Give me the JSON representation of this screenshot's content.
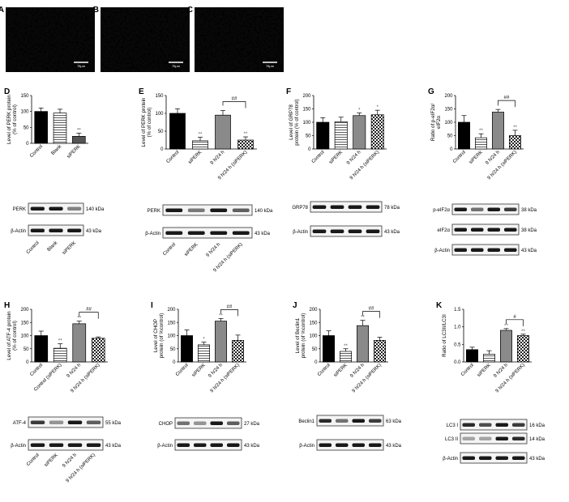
{
  "micrographs": [
    {
      "letter": "A",
      "scale": "75μm",
      "color": "#c41010"
    },
    {
      "letter": "B",
      "scale": "75μm",
      "color": "#1a24b8"
    },
    {
      "letter": "C",
      "scale": "75μm",
      "color": "#a03a6a"
    }
  ],
  "chart_data": [
    {
      "type": "bar",
      "panel": "D",
      "ylabel_lines": [
        "Level of PERK protein",
        "(% of control)"
      ],
      "ylim": [
        0,
        150
      ],
      "yticks": [
        0,
        50,
        100,
        150
      ],
      "categories": [
        "Control",
        "Blank",
        "siPERK"
      ],
      "values": [
        100,
        95,
        22
      ],
      "errors": [
        11,
        12,
        10
      ],
      "fills": [
        "black",
        "stripes",
        "dark"
      ],
      "stars": [
        "",
        "",
        "**"
      ],
      "blots": [
        {
          "label": "PERK",
          "kda": "140 kDa",
          "int": [
            1,
            1,
            0.4
          ]
        },
        {
          "label": "β-Actin",
          "kda": "43 kDa",
          "int": [
            1,
            1,
            1
          ]
        }
      ],
      "blot_labels": [
        "Control",
        "Blank",
        "siPERK"
      ]
    },
    {
      "type": "bar",
      "panel": "E",
      "ylabel_lines": [
        "Level of PERK protein",
        "(% of control)"
      ],
      "ylim": [
        0,
        150
      ],
      "yticks": [
        0,
        50,
        100,
        150
      ],
      "categories": [
        "Control",
        "siPERK",
        "9 h/24 h",
        "9 h/24 h (siPERK)"
      ],
      "values": [
        100,
        23,
        95,
        25
      ],
      "errors": [
        13,
        10,
        13,
        9
      ],
      "fills": [
        "black",
        "stripes",
        "gray",
        "check"
      ],
      "stars": [
        "",
        "**",
        "",
        "**"
      ],
      "bracket": {
        "from": 2,
        "to": 3,
        "label": "##"
      },
      "blots": [
        {
          "label": "PERK",
          "kda": "140 kDa",
          "int": [
            1,
            0.45,
            1,
            0.6
          ]
        },
        {
          "label": "β-Actin",
          "kda": "43 kDa",
          "int": [
            1,
            1,
            1,
            1
          ]
        }
      ],
      "blot_labels": [
        "Control",
        "siPERK",
        "9 h/24 h",
        "9 h/24 h (siPERK)"
      ]
    },
    {
      "type": "bar",
      "panel": "F",
      "ylabel_lines": [
        "Level of GRP78",
        "protein (% of control)"
      ],
      "ylim": [
        0,
        200
      ],
      "yticks": [
        0,
        50,
        100,
        150,
        200
      ],
      "categories": [
        "Control",
        "siPERK",
        "9 h/24 h",
        "9 h/24 h (siPERK)"
      ],
      "values": [
        100,
        102,
        125,
        128
      ],
      "errors": [
        17,
        17,
        10,
        17
      ],
      "fills": [
        "black",
        "stripes",
        "gray",
        "check"
      ],
      "stars": [
        "",
        "",
        "*",
        "*"
      ],
      "blots": [
        {
          "label": "GRP78",
          "kda": "78 kDa",
          "int": [
            1,
            1,
            1,
            1
          ]
        },
        {
          "label": "β-Actin",
          "kda": "43 kDa",
          "int": [
            1,
            1,
            1,
            1
          ]
        }
      ],
      "blot_labels": [
        "Control",
        "siPERK",
        "9 h/24 h",
        "9 h/24 h (siPERK)"
      ]
    },
    {
      "type": "bar",
      "panel": "G",
      "ylabel_lines": [
        "Ratio of p-eIF2α/",
        "eIF2α"
      ],
      "ylim": [
        0,
        200
      ],
      "yticks": [
        0,
        50,
        100,
        150,
        200
      ],
      "categories": [
        "Control",
        "siPERK",
        "9 h/24 h",
        "9 h/24 h (siPERK)"
      ],
      "values": [
        100,
        42,
        138,
        50
      ],
      "errors": [
        25,
        15,
        10,
        20
      ],
      "fills": [
        "black",
        "stripes",
        "gray",
        "check"
      ],
      "stars": [
        "",
        "**",
        "*",
        "**"
      ],
      "bracket": {
        "from": 2,
        "to": 3,
        "label": "##"
      },
      "blots": [
        {
          "label": "p-eIF2α",
          "kda": "38 kDa",
          "int": [
            1,
            0.5,
            1,
            0.8
          ]
        },
        {
          "label": "eIF2α",
          "kda": "38 kDa",
          "int": [
            1,
            1,
            1,
            1
          ]
        },
        {
          "label": "β-Actin",
          "kda": "43 kDa",
          "int": [
            1,
            1,
            1,
            1
          ]
        }
      ],
      "blot_labels": []
    },
    {
      "type": "bar",
      "panel": "H",
      "ylabel_lines": [
        "Level of ATF-4 protein",
        "(% of control)"
      ],
      "ylim": [
        0,
        200
      ],
      "yticks": [
        0,
        50,
        100,
        150,
        200
      ],
      "categories": [
        "Control",
        "Control (siPERK)",
        "9 h/24 h",
        "9 h/24 h (siPERK)"
      ],
      "values": [
        100,
        52,
        145,
        90
      ],
      "errors": [
        17,
        17,
        10,
        5
      ],
      "fills": [
        "black",
        "stripes",
        "gray",
        "check"
      ],
      "stars": [
        "",
        "**",
        "**",
        ""
      ],
      "bracket": {
        "from": 2,
        "to": 3,
        "label": "##"
      },
      "blots": [
        {
          "label": "ATF-4",
          "kda": "55 kDa",
          "int": [
            0.8,
            0.3,
            1,
            0.6
          ]
        },
        {
          "label": "β-Actin",
          "kda": "43 kDa",
          "int": [
            1,
            1,
            1,
            1
          ]
        }
      ],
      "blot_labels": [
        "Control",
        "siPERK",
        "9 h/24 h",
        "9 h/24 h (siPERK)"
      ]
    },
    {
      "type": "bar",
      "panel": "I",
      "ylabel_lines": [
        "Level of CHOP",
        "protein (of %control)"
      ],
      "ylim": [
        0,
        200
      ],
      "yticks": [
        0,
        50,
        100,
        150,
        200
      ],
      "categories": [
        "Control",
        "siPERK",
        "9 h/24 h",
        "9 h/24 h (siPERK)"
      ],
      "values": [
        100,
        65,
        155,
        82
      ],
      "errors": [
        22,
        10,
        10,
        20
      ],
      "fills": [
        "black",
        "stripes",
        "gray",
        "check"
      ],
      "stars": [
        "",
        "*",
        "**",
        ""
      ],
      "bracket": {
        "from": 2,
        "to": 3,
        "label": "##"
      },
      "blots": [
        {
          "label": "CHOP",
          "kda": "27 kDa",
          "int": [
            0.5,
            0.3,
            1,
            0.6
          ]
        },
        {
          "label": "β-Actin",
          "kda": "43 kDa",
          "int": [
            1,
            1,
            1,
            1
          ]
        }
      ],
      "blot_labels": []
    },
    {
      "type": "bar",
      "panel": "J",
      "ylabel_lines": [
        "Level of Beclin1",
        "protein (of %control)"
      ],
      "ylim": [
        0,
        200
      ],
      "yticks": [
        0,
        50,
        100,
        150,
        200
      ],
      "categories": [
        "Control",
        "siPERK",
        "9 h/24 h",
        "9 h/24 h (siPERK)"
      ],
      "values": [
        100,
        40,
        138,
        82
      ],
      "errors": [
        18,
        10,
        20,
        12
      ],
      "fills": [
        "black",
        "stripes",
        "gray",
        "check"
      ],
      "stars": [
        "",
        "**",
        "**",
        ""
      ],
      "bracket": {
        "from": 2,
        "to": 3,
        "label": "##"
      },
      "blots": [
        {
          "label": "Beclin1",
          "kda": "63 kDa",
          "int": [
            0.9,
            0.5,
            1,
            0.8
          ]
        },
        {
          "label": "β-Actin",
          "kda": "43 kDa",
          "int": [
            1,
            1,
            1,
            1
          ]
        }
      ],
      "blot_labels": []
    },
    {
      "type": "bar",
      "panel": "K",
      "ylabel_lines": [
        "Ratio of LC3II/LC3I"
      ],
      "ylim": [
        0,
        1.5
      ],
      "yticks": [
        "0.0",
        "0.5",
        "1.0",
        "1.5"
      ],
      "categories": [
        "Control",
        "siPERK",
        "9 h/24 h",
        "9 h/24 h (siPERK)"
      ],
      "values": [
        0.35,
        0.22,
        0.9,
        0.75
      ],
      "errors": [
        0.07,
        0.1,
        0.05,
        0.04
      ],
      "fills": [
        "black",
        "stripes",
        "gray",
        "check"
      ],
      "stars": [
        "",
        "",
        "**",
        "**"
      ],
      "bracket": {
        "from": 2,
        "to": 3,
        "label": "#"
      },
      "blots": [
        {
          "label": "LC3 I",
          "kda": "16 kDa",
          "int": [
            0.9,
            0.7,
            1,
            0.8
          ]
        },
        {
          "label": "LC3 II",
          "kda": "14 kDa",
          "int": [
            0.2,
            0.2,
            1,
            0.9
          ]
        },
        {
          "label": "β-Actin",
          "kda": "43 kDa",
          "int": [
            1,
            1,
            1,
            1
          ]
        }
      ],
      "blot_labels": []
    }
  ]
}
